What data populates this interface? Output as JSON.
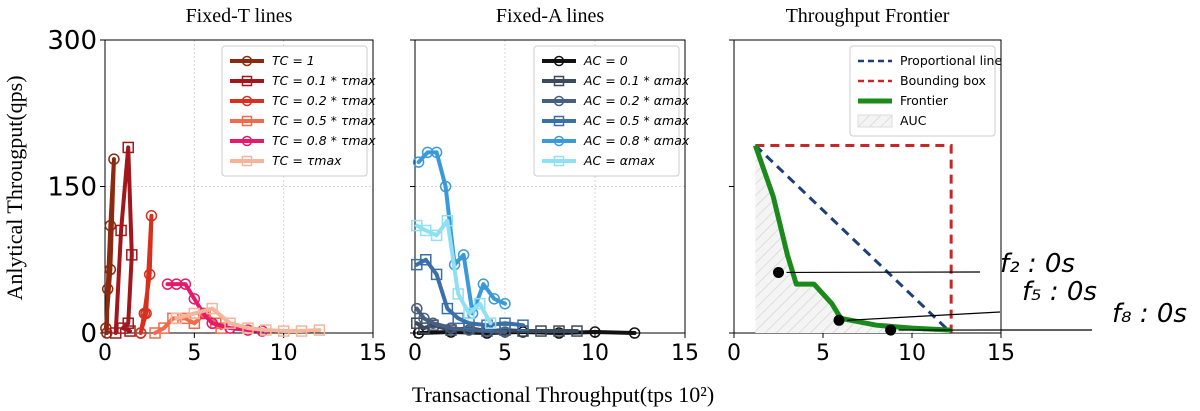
{
  "shared": {
    "ylabel": "Anlytical Througput(qps)",
    "xlabel": "Transactional Throughput(tps 10²)",
    "xlim": [
      0,
      15
    ],
    "ylim": [
      0,
      300
    ],
    "x_ticks": [
      "0",
      "5",
      "10",
      "15"
    ],
    "y_ticks": [
      "0",
      "150",
      "300"
    ]
  },
  "chart_data": [
    {
      "type": "line",
      "title": "Fixed-T lines",
      "grid": true,
      "legend_placement": "top-right",
      "series": [
        {
          "name": "TC = 1",
          "color": "#8b2a0e",
          "marker": "circle",
          "x": [
            0.05,
            0.3,
            0.5,
            0.3,
            0.15,
            0.1
          ],
          "y": [
            5,
            65,
            178,
            110,
            45,
            0
          ]
        },
        {
          "name": "TC = 0.1 * τmax",
          "color": "#a1171b",
          "marker": "square",
          "x": [
            0.6,
            0.9,
            1.3,
            1.5,
            1.3,
            1.0,
            1.4
          ],
          "y": [
            0,
            105,
            190,
            80,
            10,
            5,
            2
          ]
        },
        {
          "name": "TC = 0.2 * τmax",
          "color": "#d7301f",
          "marker": "circle",
          "x": [
            2.0,
            2.3,
            2.6,
            2.5,
            2.2,
            2.0
          ],
          "y": [
            0,
            20,
            120,
            60,
            20,
            0
          ]
        },
        {
          "name": "TC = 0.5 * τmax",
          "color": "#f16a4a",
          "marker": "square",
          "x": [
            2.8,
            3.3,
            3.8,
            4.5,
            5.0,
            5.6,
            6.2,
            6.5
          ],
          "y": [
            0,
            5,
            15,
            15,
            10,
            20,
            10,
            5
          ]
        },
        {
          "name": "TC = 0.8 * τmax",
          "color": "#e7196b",
          "marker": "circle",
          "x": [
            3.5,
            4.0,
            4.5,
            5.0,
            5.5,
            6.0,
            7.0,
            8.0,
            8.8
          ],
          "y": [
            50,
            50,
            50,
            35,
            20,
            10,
            5,
            3,
            2
          ]
        },
        {
          "name": "TC = τmax",
          "color": "#f5b59a",
          "marker": "square",
          "x": [
            4.0,
            5.0,
            6.0,
            7.0,
            8.0,
            9.0,
            10.0,
            11.0,
            12.0
          ],
          "y": [
            15,
            20,
            25,
            10,
            5,
            3,
            2,
            2,
            3
          ]
        }
      ]
    },
    {
      "type": "line",
      "title": "Fixed-A lines",
      "grid": true,
      "legend_placement": "top-right",
      "series": [
        {
          "name": "AC = 0",
          "color": "#111111",
          "marker": "circle",
          "x": [
            0.2,
            2,
            4,
            6,
            8,
            10,
            12.2
          ],
          "y": [
            0,
            1,
            0,
            1,
            0,
            1,
            0
          ]
        },
        {
          "name": "AC = 0.1 * αmax",
          "color": "#3c4a5e",
          "marker": "square",
          "x": [
            0.1,
            0.5,
            1.0,
            2.0,
            3.0,
            4.0,
            5.0,
            6.0,
            7.0,
            8.0,
            9.0
          ],
          "y": [
            10,
            5,
            8,
            3,
            5,
            2,
            3,
            2,
            2,
            2,
            2
          ]
        },
        {
          "name": "AC = 0.2 * αmax",
          "color": "#475f80",
          "marker": "circle",
          "x": [
            0.1,
            0.5,
            1.0,
            2.0,
            3.0,
            4.0,
            5.0
          ],
          "y": [
            25,
            15,
            10,
            5,
            3,
            2,
            1
          ]
        },
        {
          "name": "AC = 0.5 * αmax",
          "color": "#3b6fa8",
          "marker": "square",
          "x": [
            0.1,
            0.6,
            1.2,
            1.8,
            2.4,
            3.0,
            4.0,
            5.0,
            6.0
          ],
          "y": [
            70,
            75,
            60,
            25,
            15,
            10,
            8,
            10,
            8
          ]
        },
        {
          "name": "AC = 0.8 * αmax",
          "color": "#3a9ad9",
          "marker": "circle",
          "x": [
            0.2,
            0.7,
            1.2,
            1.7,
            2.2,
            2.7,
            3.2,
            3.8,
            4.4,
            5.0
          ],
          "y": [
            175,
            185,
            185,
            150,
            70,
            80,
            20,
            50,
            35,
            30
          ]
        },
        {
          "name": "AC = αmax",
          "color": "#8fe0f2",
          "marker": "square",
          "x": [
            0.1,
            0.6,
            1.2,
            1.8,
            2.4,
            3.0,
            3.6,
            4.2
          ],
          "y": [
            110,
            105,
            100,
            115,
            40,
            20,
            30,
            10
          ]
        }
      ]
    },
    {
      "type": "line",
      "title": "Throughput Frontier",
      "grid": false,
      "legend_placement": "top-right",
      "legend": [
        "Proportional line",
        "Bounding box",
        "Frontier",
        "AUC"
      ],
      "frontier": {
        "color": "#1a8a1a",
        "x": [
          1.2,
          2.2,
          3.0,
          3.5,
          4.5,
          5.5,
          6.0,
          8.0,
          10.0,
          12.2
        ],
        "y": [
          192,
          140,
          80,
          50,
          50,
          30,
          15,
          8,
          5,
          3
        ]
      },
      "proportional": {
        "color": "#1f3f7a",
        "x": [
          1.2,
          12.2
        ],
        "y": [
          192,
          0
        ]
      },
      "bounding_box": {
        "color": "#c62828",
        "x": [
          1.2,
          12.2,
          12.2
        ],
        "y": [
          192,
          192,
          0
        ]
      },
      "points": [
        {
          "label": "f₂ : 0s",
          "x": 2.5,
          "y": 62
        },
        {
          "label": "f₅ : 0s",
          "x": 5.9,
          "y": 13
        },
        {
          "label": "f₈ : 0s",
          "x": 8.8,
          "y": 3
        }
      ]
    }
  ]
}
